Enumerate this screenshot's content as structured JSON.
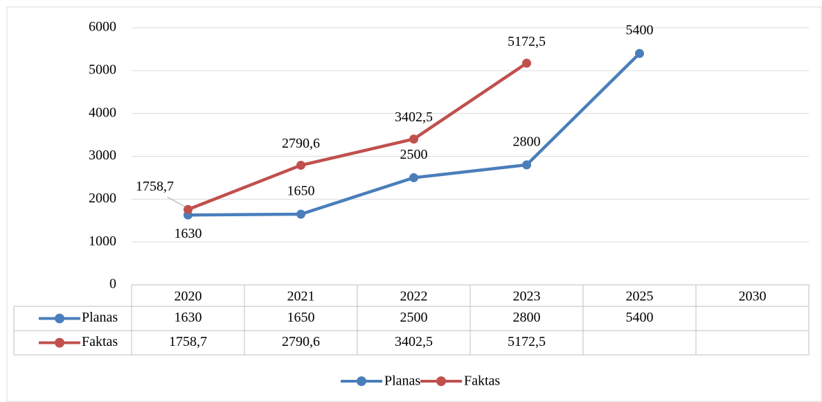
{
  "chart_data": {
    "type": "line",
    "categories": [
      "2020",
      "2021",
      "2022",
      "2023",
      "2025",
      "2030"
    ],
    "series": [
      {
        "name": "Planas",
        "color": "#4a7ebb",
        "values": [
          1630,
          1650,
          2500,
          2800,
          5400,
          null
        ]
      },
      {
        "name": "Faktas",
        "color": "#c0504d",
        "values": [
          1758.7,
          2790.6,
          3402.5,
          5172.5,
          null,
          null
        ],
        "value_labels": [
          "1758,7",
          "2790,6",
          "3402,5",
          "5172,5",
          null,
          null
        ]
      }
    ],
    "ylim": [
      0,
      6000
    ],
    "yticks": [
      0,
      1000,
      2000,
      3000,
      4000,
      5000,
      6000
    ],
    "grid": true,
    "legend": "bottom",
    "data_table": true
  }
}
